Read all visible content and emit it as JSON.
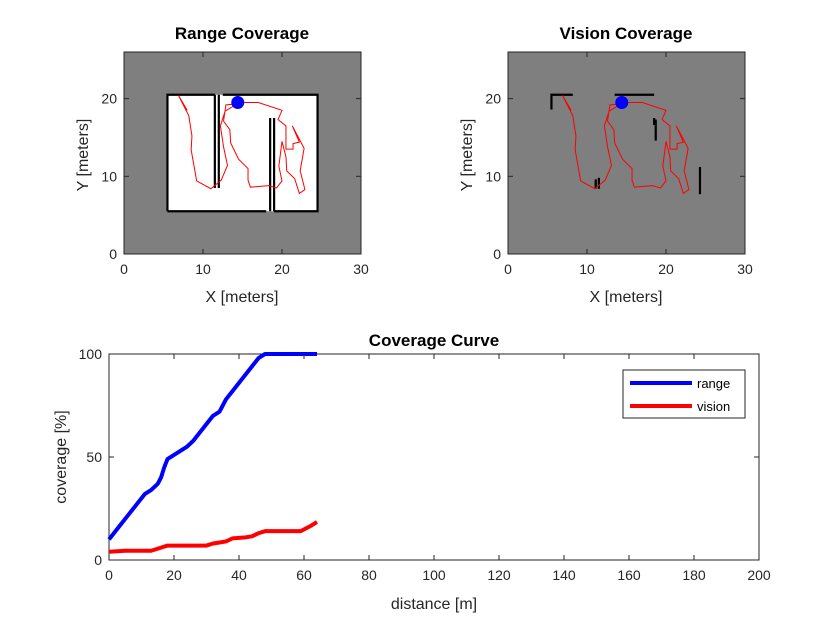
{
  "colors": {
    "background": "#ffffff",
    "map_fill": "#7f7f7f",
    "free_space": "#ffffff",
    "walls": "#000000",
    "trajectory": "#ff0000",
    "robot": "#0000ff",
    "range_line": "#0000ff",
    "vision_line": "#ff0000",
    "axis": "#262626"
  },
  "chart_data": [
    {
      "id": "range",
      "type": "map",
      "title": "Range Coverage",
      "xlabel": "X [meters]",
      "ylabel": "Y [meters]",
      "xlim": [
        0,
        30
      ],
      "ylim": [
        0,
        26
      ],
      "xticks": [
        0,
        10,
        20,
        30
      ],
      "yticks": [
        0,
        10,
        20
      ],
      "free_space": [
        {
          "x0": 5.5,
          "y0": 5.5,
          "x1": 24.5,
          "y1": 20.5
        }
      ],
      "walls": [
        [
          [
            5.5,
            5.5
          ],
          [
            5.5,
            20.5
          ],
          [
            11.5,
            20.5
          ]
        ],
        [
          [
            12.5,
            20.5
          ],
          [
            24.5,
            20.5
          ],
          [
            24.5,
            5.5
          ],
          [
            19,
            5.5
          ]
        ],
        [
          [
            18,
            5.5
          ],
          [
            5.5,
            5.5
          ]
        ],
        [
          [
            11.5,
            20.5
          ],
          [
            11.5,
            8.5
          ]
        ],
        [
          [
            12,
            20.5
          ],
          [
            12,
            8.5
          ]
        ],
        [
          [
            18.5,
            17.5
          ],
          [
            18.5,
            5.5
          ]
        ],
        [
          [
            19,
            17.5
          ],
          [
            19,
            5.5
          ]
        ]
      ],
      "trajectory": [
        [
          14.4,
          19.5
        ],
        [
          17,
          19.5
        ],
        [
          20,
          18.5
        ],
        [
          19.5,
          17.3
        ],
        [
          20.5,
          16.5
        ],
        [
          20.5,
          13.5
        ],
        [
          21.4,
          13.5
        ],
        [
          21.4,
          14.2
        ],
        [
          22.2,
          14.4
        ],
        [
          21.3,
          16.5
        ],
        [
          22.8,
          13.6
        ],
        [
          22.3,
          10.7
        ],
        [
          22.9,
          8.3
        ],
        [
          22.2,
          7.8
        ],
        [
          21.6,
          9.7
        ],
        [
          20.6,
          10.7
        ],
        [
          20.5,
          12.5
        ],
        [
          20,
          14.5
        ],
        [
          19.6,
          11.3
        ],
        [
          20,
          9.4
        ],
        [
          19.3,
          8.5
        ],
        [
          18.3,
          8.8
        ],
        [
          16,
          8.6
        ],
        [
          15.7,
          9.5
        ],
        [
          15.7,
          11
        ],
        [
          14.5,
          12.2
        ],
        [
          13.5,
          14.3
        ],
        [
          13.4,
          16
        ],
        [
          12.6,
          17.1
        ],
        [
          12.9,
          19.2
        ],
        [
          14.3,
          19.3
        ],
        [
          12.8,
          18.4
        ],
        [
          12.2,
          16.5
        ],
        [
          12.6,
          13.8
        ],
        [
          13.1,
          11.4
        ],
        [
          12.3,
          9.5
        ],
        [
          11,
          8.4
        ],
        [
          9.2,
          9.4
        ],
        [
          8.5,
          13.4
        ],
        [
          8.6,
          15.2
        ],
        [
          8.2,
          17.8
        ],
        [
          6.9,
          20.4
        ],
        [
          8,
          18.5
        ]
      ],
      "robot": [
        14.4,
        19.5
      ]
    },
    {
      "id": "vision",
      "type": "map",
      "title": "Vision Coverage",
      "xlabel": "X [meters]",
      "ylabel": "Y [meters]",
      "xlim": [
        0,
        30
      ],
      "ylim": [
        0,
        26
      ],
      "xticks": [
        0,
        10,
        20,
        30
      ],
      "yticks": [
        0,
        10,
        20
      ],
      "walls": [
        [
          [
            5.5,
            18.6
          ],
          [
            5.5,
            20.5
          ],
          [
            8.2,
            20.5
          ]
        ],
        [
          [
            13.5,
            20.5
          ],
          [
            18.5,
            20.5
          ]
        ],
        [
          [
            18.5,
            17.5
          ],
          [
            18.5,
            16.6
          ]
        ],
        [
          [
            18.7,
            17.3
          ],
          [
            18.7,
            14.6
          ]
        ],
        [
          [
            11.1,
            8.4
          ],
          [
            11.1,
            9.6
          ]
        ],
        [
          [
            11.5,
            9.8
          ],
          [
            11.5,
            8.4
          ]
        ],
        [
          [
            24.3,
            11.2
          ],
          [
            24.3,
            7.7
          ]
        ]
      ],
      "trajectory": [
        [
          14.4,
          19.5
        ],
        [
          17,
          19.5
        ],
        [
          20,
          18.5
        ],
        [
          19.5,
          17.3
        ],
        [
          20.5,
          16.5
        ],
        [
          20.5,
          13.5
        ],
        [
          21.4,
          13.5
        ],
        [
          21.4,
          14.2
        ],
        [
          22.2,
          14.4
        ],
        [
          21.3,
          16.5
        ],
        [
          22.8,
          13.6
        ],
        [
          22.3,
          10.7
        ],
        [
          22.9,
          8.3
        ],
        [
          22.2,
          7.8
        ],
        [
          21.6,
          9.7
        ],
        [
          20.6,
          10.7
        ],
        [
          20.5,
          12.5
        ],
        [
          20,
          14.5
        ],
        [
          19.6,
          11.3
        ],
        [
          20,
          9.4
        ],
        [
          19.3,
          8.5
        ],
        [
          18.3,
          8.8
        ],
        [
          16,
          8.6
        ],
        [
          15.7,
          9.5
        ],
        [
          15.7,
          11
        ],
        [
          14.5,
          12.2
        ],
        [
          13.5,
          14.3
        ],
        [
          13.4,
          16
        ],
        [
          12.6,
          17.1
        ],
        [
          12.9,
          19.2
        ],
        [
          14.3,
          19.3
        ],
        [
          12.8,
          18.4
        ],
        [
          12.2,
          16.5
        ],
        [
          12.6,
          13.8
        ],
        [
          13.1,
          11.4
        ],
        [
          12.3,
          9.5
        ],
        [
          11,
          8.4
        ],
        [
          9.2,
          9.4
        ],
        [
          8.5,
          13.4
        ],
        [
          8.6,
          15.2
        ],
        [
          8.2,
          17.8
        ],
        [
          6.9,
          20.4
        ],
        [
          8,
          18.5
        ]
      ],
      "robot": [
        14.4,
        19.5
      ]
    },
    {
      "id": "coverage",
      "type": "line",
      "title": "Coverage Curve",
      "xlabel": "distance [m]",
      "ylabel": "coverage [%]",
      "xlim": [
        0,
        200
      ],
      "ylim": [
        0,
        100
      ],
      "xticks": [
        0,
        20,
        40,
        60,
        80,
        100,
        120,
        140,
        160,
        180,
        200
      ],
      "yticks": [
        0,
        50,
        100
      ],
      "legend_position": "top-right",
      "series": [
        {
          "name": "range",
          "color": "#0000ff",
          "points": [
            [
              0,
              10
            ],
            [
              3,
              16
            ],
            [
              6,
              22
            ],
            [
              8,
              26
            ],
            [
              11,
              32
            ],
            [
              13,
              34
            ],
            [
              15,
              37
            ],
            [
              16,
              40
            ],
            [
              17,
              45
            ],
            [
              18,
              49
            ],
            [
              20,
              51
            ],
            [
              22,
              53
            ],
            [
              24,
              55
            ],
            [
              26,
              58
            ],
            [
              28,
              62
            ],
            [
              30,
              66
            ],
            [
              32,
              70
            ],
            [
              34,
              72
            ],
            [
              36,
              78
            ],
            [
              38,
              82
            ],
            [
              40,
              86
            ],
            [
              42,
              90
            ],
            [
              44,
              94
            ],
            [
              46,
              98
            ],
            [
              48,
              100
            ],
            [
              64,
              100
            ]
          ]
        },
        {
          "name": "vision",
          "color": "#ff0000",
          "points": [
            [
              0,
              4
            ],
            [
              5,
              4.5
            ],
            [
              10,
              4.5
            ],
            [
              13,
              4.5
            ],
            [
              16,
              6
            ],
            [
              18,
              7
            ],
            [
              22,
              7
            ],
            [
              26,
              7
            ],
            [
              30,
              7
            ],
            [
              32,
              8
            ],
            [
              34,
              8.5
            ],
            [
              36,
              9
            ],
            [
              38,
              10.5
            ],
            [
              42,
              11
            ],
            [
              44,
              11.5
            ],
            [
              46,
              13
            ],
            [
              48,
              14
            ],
            [
              52,
              14
            ],
            [
              56,
              14
            ],
            [
              59,
              14
            ],
            [
              62,
              16.5
            ],
            [
              64,
              18.5
            ]
          ]
        }
      ]
    }
  ]
}
